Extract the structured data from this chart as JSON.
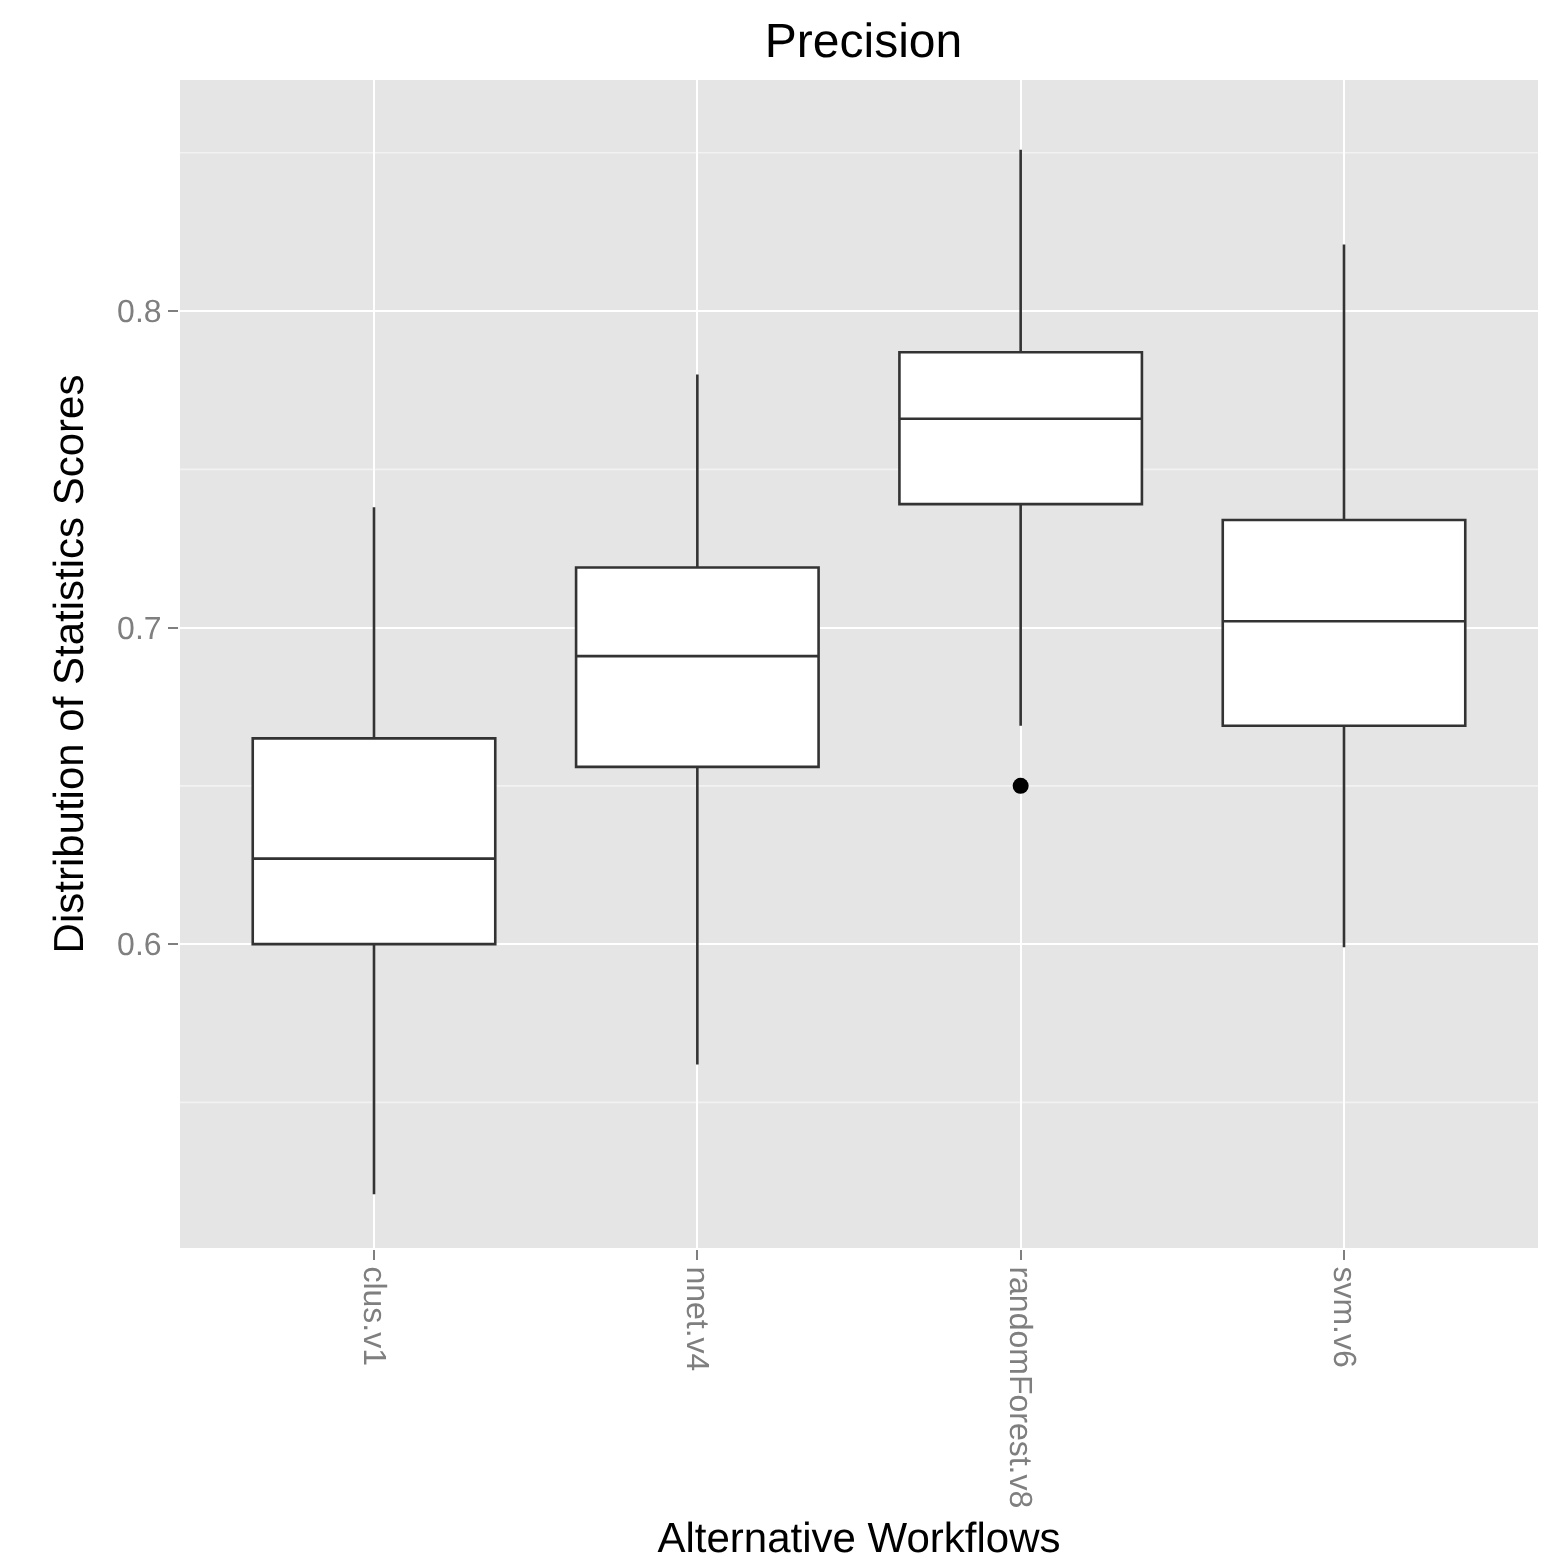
{
  "chart_data": {
    "type": "box",
    "title": "Precision",
    "xlabel": "Alternative Workflows",
    "ylabel": "Distribution of Statistics Scores",
    "categories": [
      "clus.v1",
      "nnet.v4",
      "randomForest.v8",
      "svm.v6"
    ],
    "boxes": [
      {
        "low": 0.521,
        "q1": 0.6,
        "median": 0.627,
        "q3": 0.665,
        "high": 0.738
      },
      {
        "low": 0.562,
        "q1": 0.656,
        "median": 0.691,
        "q3": 0.719,
        "high": 0.78
      },
      {
        "low": 0.669,
        "q1": 0.739,
        "median": 0.766,
        "q3": 0.787,
        "high": 0.851,
        "outliers": [
          0.65
        ]
      },
      {
        "low": 0.599,
        "q1": 0.669,
        "median": 0.702,
        "q3": 0.734,
        "high": 0.821
      }
    ],
    "color": "#333333",
    "ylim": [
      0.504,
      0.873
    ],
    "yticks": [
      0.6,
      0.7,
      0.8
    ],
    "grid": true
  }
}
